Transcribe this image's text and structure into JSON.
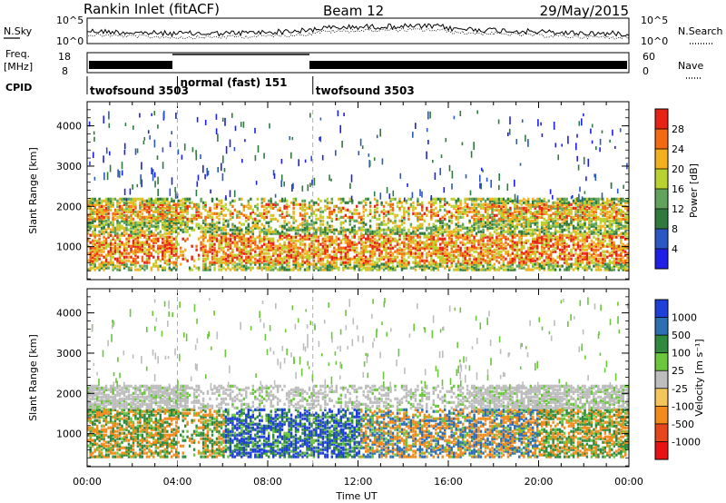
{
  "header": {
    "station": "Rankin Inlet (fitACF)",
    "beam": "Beam 12",
    "date": "29/May/2015"
  },
  "strip_noise": {
    "left_label": "N.Sky",
    "right_label": "N.Search",
    "left_ticks": [
      "10^5",
      "10^0"
    ],
    "right_ticks": [
      "10^5",
      "10^0"
    ]
  },
  "strip_freq": {
    "left_label_1": "Freq.",
    "left_label_2": "[MHz]",
    "left_ticks": [
      "18",
      "8"
    ],
    "right_label": "Nave",
    "right_ticks": [
      "60",
      "0"
    ]
  },
  "cpid": {
    "label": "CPID",
    "segments": [
      {
        "name": "twofsound 3503",
        "start": 0.0
      },
      {
        "name": "normal (fast) 151",
        "start": 4.0
      },
      {
        "name": "twofsound 3503",
        "start": 10.0
      }
    ]
  },
  "chart_data": [
    {
      "type": "heatmap",
      "title": "",
      "xlabel": "Time UT",
      "ylabel": "Slant Range [km]",
      "xlim": [
        0,
        24
      ],
      "ylim": [
        180,
        4600
      ],
      "xticks": [
        "00:00",
        "04:00",
        "08:00",
        "12:00",
        "16:00",
        "20:00",
        "00:00"
      ],
      "yticks": [
        "1000",
        "2000",
        "3000",
        "4000"
      ],
      "colorbar": {
        "label": "Power [dB]",
        "ticks": [
          "4",
          "8",
          "12",
          "16",
          "20",
          "24",
          "28"
        ],
        "colors": [
          "#1f1fe6",
          "#2a57c4",
          "#2f7a3c",
          "#5fa45a",
          "#b9d22f",
          "#f2b01e",
          "#f26a12",
          "#e62314"
        ]
      }
    },
    {
      "type": "heatmap",
      "title": "",
      "xlabel": "Time UT",
      "ylabel": "Slant Range [km]",
      "xlim": [
        0,
        24
      ],
      "ylim": [
        180,
        4600
      ],
      "xticks": [
        "00:00",
        "04:00",
        "08:00",
        "12:00",
        "16:00",
        "20:00",
        "00:00"
      ],
      "yticks": [
        "1000",
        "2000",
        "3000",
        "4000"
      ],
      "colorbar": {
        "label": "Velocity [m s⁻¹]",
        "ticks": [
          "1000",
          "500",
          "100",
          "25",
          "-25",
          "-100",
          "-500",
          "-1000"
        ],
        "colors": [
          "#1f3fd9",
          "#2c6fb2",
          "#2f8a3d",
          "#6ac63a",
          "#bdbdbd",
          "#f3c55a",
          "#f28a1c",
          "#e6461a",
          "#e81212"
        ]
      }
    }
  ]
}
